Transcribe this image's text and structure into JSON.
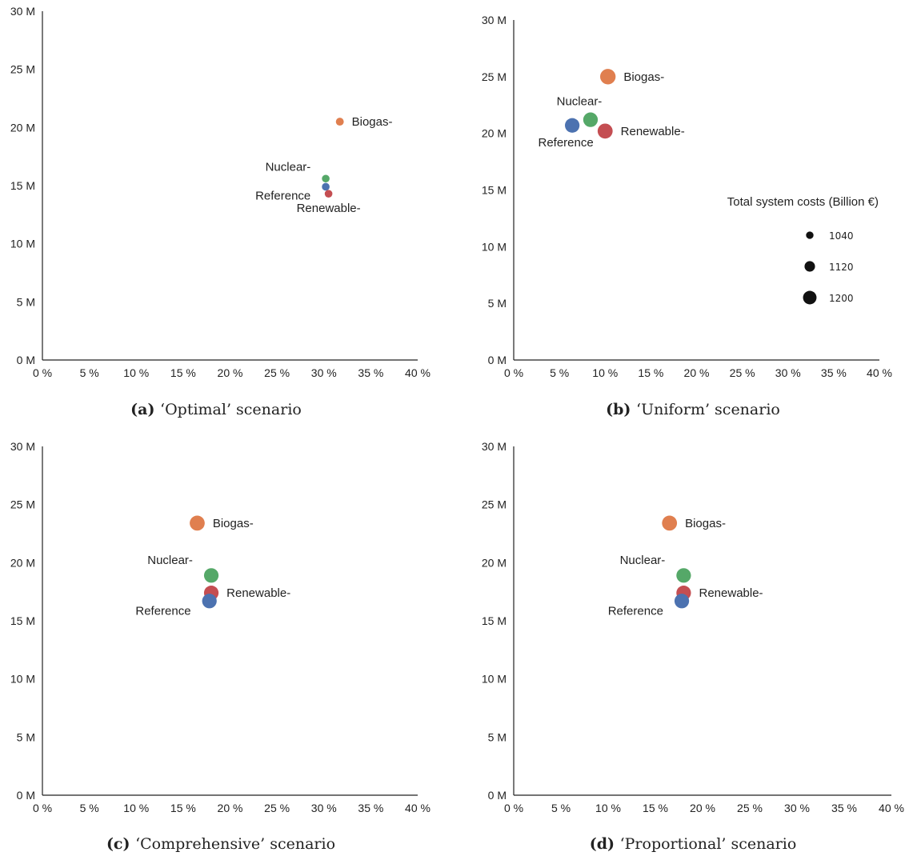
{
  "chart_data": [
    {
      "type": "scatter",
      "panel_letter": "(a)",
      "caption": "‘Optimal’ scenario",
      "xlim": [
        0,
        40
      ],
      "ylim": [
        0,
        30
      ],
      "x_ticks": [
        "0 %",
        "5 %",
        "10 %",
        "15 %",
        "20 %",
        "25 %",
        "30 %",
        "35 %",
        "40 %"
      ],
      "y_ticks": [
        "0 M",
        "5 M",
        "10 M",
        "15 M",
        "20 M",
        "25 M",
        "30 M"
      ],
      "points": [
        {
          "label": "Biogas-",
          "x": 31.7,
          "y": 20.5,
          "size": 1020,
          "color": "#e07f4f",
          "label_pos": "right"
        },
        {
          "label": "Nuclear-",
          "x": 30.2,
          "y": 15.6,
          "size": 1015,
          "color": "#55a868",
          "label_pos": "upper-left"
        },
        {
          "label": "Reference",
          "x": 30.2,
          "y": 14.9,
          "size": 1015,
          "color": "#4c72b0",
          "label_pos": "left"
        },
        {
          "label": "Renewable-",
          "x": 30.5,
          "y": 14.3,
          "size": 1015,
          "color": "#c44e52",
          "label_pos": "lower"
        }
      ]
    },
    {
      "type": "scatter",
      "panel_letter": "(b)",
      "caption": "‘Uniform’ scenario",
      "xlim": [
        0,
        40
      ],
      "ylim": [
        0,
        30
      ],
      "x_ticks": [
        "0 %",
        "5 %",
        "10 %",
        "15 %",
        "20 %",
        "25 %",
        "30 %",
        "35 %",
        "40 %"
      ],
      "y_ticks": [
        "0 M",
        "5 M",
        "10 M",
        "15 M",
        "20 M",
        "25 M",
        "30 M"
      ],
      "points": [
        {
          "label": "Biogas-",
          "x": 10.3,
          "y": 25.0,
          "size": 1190,
          "color": "#e07f4f",
          "label_pos": "right"
        },
        {
          "label": "Nuclear-",
          "x": 8.4,
          "y": 21.2,
          "size": 1170,
          "color": "#55a868",
          "label_pos": "above"
        },
        {
          "label": "Reference",
          "x": 6.4,
          "y": 20.7,
          "size": 1170,
          "color": "#4c72b0",
          "label_pos": "below"
        },
        {
          "label": "Renewable-",
          "x": 10.0,
          "y": 20.2,
          "size": 1180,
          "color": "#c44e52",
          "label_pos": "right"
        }
      ],
      "legend": {
        "title": "Total system costs (Billion €)",
        "placement": "right",
        "entries": [
          {
            "label": "1040",
            "size": 1040
          },
          {
            "label": "1120",
            "size": 1120
          },
          {
            "label": "1200",
            "size": 1200
          }
        ]
      }
    },
    {
      "type": "scatter",
      "panel_letter": "(c)",
      "caption": "‘Comprehensive’ scenario",
      "xlim": [
        0,
        40
      ],
      "ylim": [
        0,
        30
      ],
      "x_ticks": [
        "0 %",
        "5 %",
        "10 %",
        "15 %",
        "20 %",
        "25 %",
        "30 %",
        "35 %",
        "40 %"
      ],
      "y_ticks": [
        "0 M",
        "5 M",
        "10 M",
        "15 M",
        "20 M",
        "25 M",
        "30 M"
      ],
      "points": [
        {
          "label": "Biogas-",
          "x": 16.5,
          "y": 23.4,
          "size": 1180,
          "color": "#e07f4f",
          "label_pos": "right"
        },
        {
          "label": "Nuclear-",
          "x": 18.0,
          "y": 18.9,
          "size": 1170,
          "color": "#55a868",
          "label_pos": "upper-left"
        },
        {
          "label": "Renewable-",
          "x": 18.0,
          "y": 17.4,
          "size": 1170,
          "color": "#c44e52",
          "label_pos": "right"
        },
        {
          "label": "Reference",
          "x": 17.8,
          "y": 16.7,
          "size": 1170,
          "color": "#4c72b0",
          "label_pos": "lower-left"
        }
      ]
    },
    {
      "type": "scatter",
      "panel_letter": "(d)",
      "caption": "‘Proportional’ scenario",
      "xlim": [
        0,
        40
      ],
      "ylim": [
        0,
        30
      ],
      "x_ticks": [
        "0 %",
        "5 %",
        "10 %",
        "15 %",
        "20 %",
        "25 %",
        "30 %",
        "35 %",
        "40 %"
      ],
      "y_ticks": [
        "0 M",
        "5 M",
        "10 M",
        "15 M",
        "20 M",
        "25 M",
        "30 M"
      ],
      "points": [
        {
          "label": "Biogas-",
          "x": 16.5,
          "y": 23.4,
          "size": 1180,
          "color": "#e07f4f",
          "label_pos": "right"
        },
        {
          "label": "Nuclear-",
          "x": 18.0,
          "y": 18.9,
          "size": 1170,
          "color": "#55a868",
          "label_pos": "upper-left"
        },
        {
          "label": "Renewable-",
          "x": 18.0,
          "y": 17.4,
          "size": 1170,
          "color": "#c44e52",
          "label_pos": "right"
        },
        {
          "label": "Reference",
          "x": 17.8,
          "y": 16.7,
          "size": 1170,
          "color": "#4c72b0",
          "label_pos": "lower-left"
        }
      ]
    }
  ]
}
